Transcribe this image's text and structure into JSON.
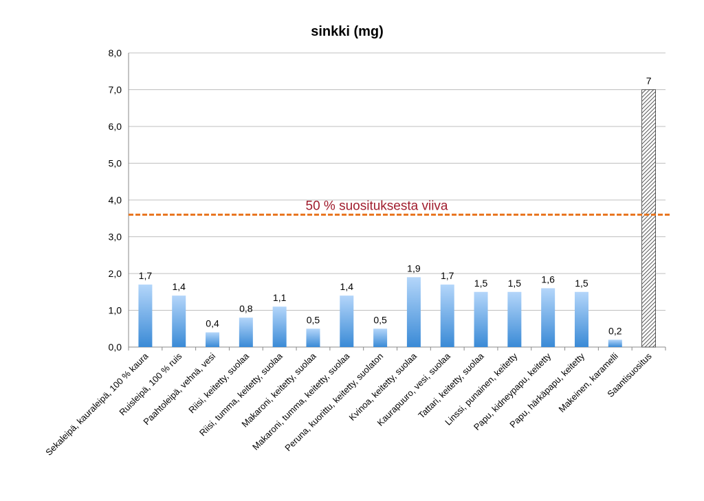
{
  "chart_data": {
    "type": "bar",
    "title": "sinkki (mg)",
    "xlabel": "",
    "ylabel": "",
    "ylim": [
      0,
      8
    ],
    "yticks": [
      "0,0",
      "1,0",
      "2,0",
      "3,0",
      "4,0",
      "5,0",
      "6,0",
      "7,0",
      "8,0"
    ],
    "grid": true,
    "categories": [
      "Sekaleipä, kauraleipä, 100 % kaura",
      "Ruisleipä, 100 % ruis",
      "Paahtoleipä, vehnä, vesi",
      "Riisi, keitetty, suolaa",
      "Riisi, tumma, keitetty, suolaa",
      "Makaroni, keitetty, suolaa",
      "Makaroni, tumma, keitetty, suolaa",
      "Peruna, kuorittu, keitetty, suolaton",
      "Kvinoa, keitetty, suolaa",
      "Kaurapuuro, vesi, suolaa",
      "Tattari, keitetty, suolaa",
      "Linssi, punainen, keitetty",
      "Papu, kidneypapu, keitetty",
      "Papu, härkäpapu, keitetty",
      "Makeinen, karamelli",
      "Saantisuositus"
    ],
    "values": [
      1.7,
      1.4,
      0.4,
      0.8,
      1.1,
      0.5,
      1.4,
      0.5,
      1.9,
      1.7,
      1.5,
      1.5,
      1.6,
      1.5,
      0.2,
      7
    ],
    "value_labels": [
      "1,7",
      "1,4",
      "0,4",
      "0,8",
      "1,1",
      "0,5",
      "1,4",
      "0,5",
      "1,9",
      "1,7",
      "1,5",
      "1,5",
      "1,6",
      "1,5",
      "0,2",
      "7"
    ],
    "bar_style": [
      "gradient",
      "gradient",
      "gradient",
      "gradient",
      "gradient",
      "gradient",
      "gradient",
      "gradient",
      "gradient",
      "gradient",
      "gradient",
      "gradient",
      "gradient",
      "gradient",
      "gradient",
      "hatched"
    ],
    "colors": {
      "bar_top": "#b4d6fa",
      "bar_bottom": "#3a8ad6",
      "hatch": "#555555",
      "reference_line": "#e8741e",
      "reference_label": "#a01d2e",
      "grid": "#bfbfbf",
      "axis": "#888888"
    },
    "reference_line": {
      "value": 3.6,
      "label": "50 % suosituksesta viiva",
      "style": "dashed"
    }
  }
}
